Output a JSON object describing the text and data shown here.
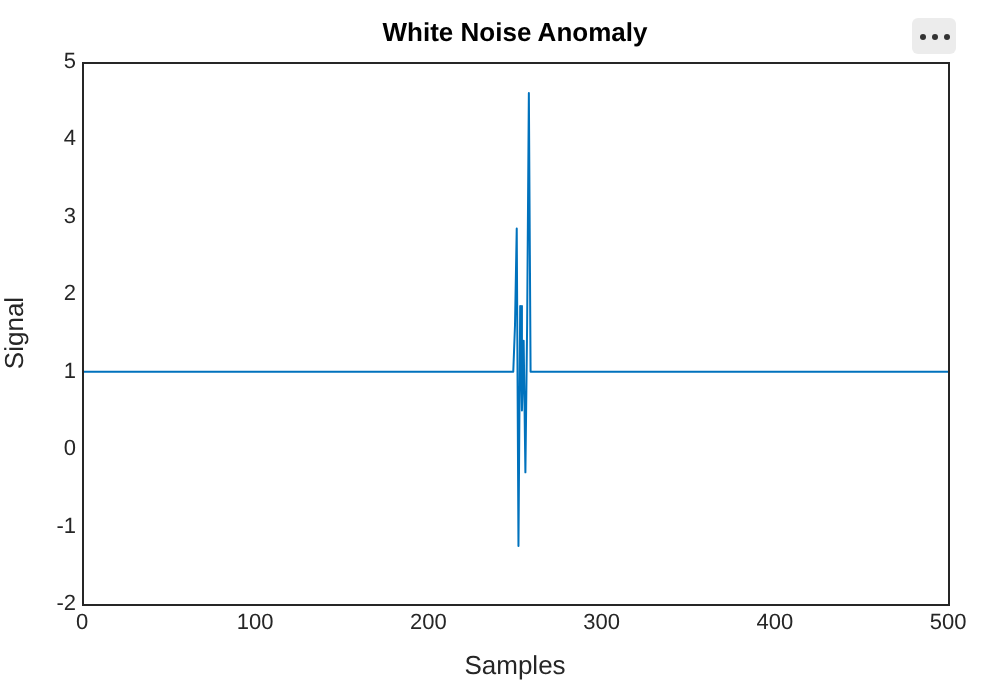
{
  "chart_data": {
    "type": "line",
    "title": "White Noise Anomaly",
    "xlabel": "Samples",
    "ylabel": "Signal",
    "series": [
      {
        "color": "#0072bd",
        "x": [
          0,
          249,
          250,
          251,
          252,
          253,
          254,
          255,
          256,
          257,
          258,
          259,
          260,
          500
        ],
        "values": [
          1,
          1,
          1.6,
          2.85,
          -1.25,
          1.85,
          0.5,
          1.4,
          -0.3,
          1.6,
          4.6,
          1,
          1,
          1
        ]
      }
    ],
    "xlim": [
      0,
      500
    ],
    "xticks": [
      0,
      100,
      200,
      300,
      400,
      500
    ],
    "ylim": [
      -2,
      5
    ],
    "yticks": [
      -2,
      -1,
      0,
      1,
      2,
      3,
      4,
      5
    ],
    "grid": false,
    "legend": false,
    "marker": "none",
    "line_style": "solid"
  }
}
